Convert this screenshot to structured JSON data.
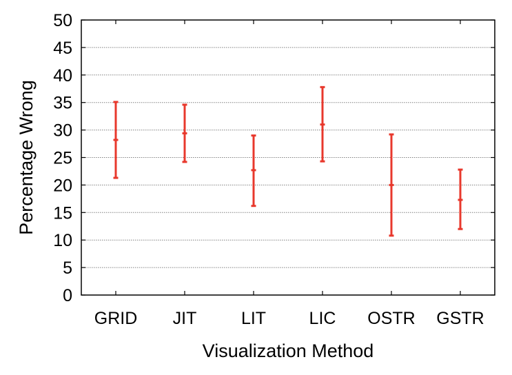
{
  "chart_data": {
    "type": "errorbar",
    "title": "",
    "xlabel": "Visualization Method",
    "ylabel": "Percentage Wrong",
    "ylim": [
      0,
      50
    ],
    "yticks": [
      0,
      5,
      10,
      15,
      20,
      25,
      30,
      35,
      40,
      45,
      50
    ],
    "grid": "horizontal dotted",
    "categories": [
      "GRID",
      "JIT",
      "LIT",
      "LIC",
      "OSTR",
      "GSTR"
    ],
    "series": [
      {
        "mean": [
          28.2,
          29.4,
          22.7,
          31.0,
          20.0,
          17.3
        ],
        "lower": [
          21.3,
          24.2,
          16.2,
          24.3,
          10.8,
          12.0
        ],
        "upper": [
          35.1,
          34.6,
          29.0,
          37.8,
          29.2,
          22.8
        ],
        "color": "#e8382c"
      }
    ]
  }
}
